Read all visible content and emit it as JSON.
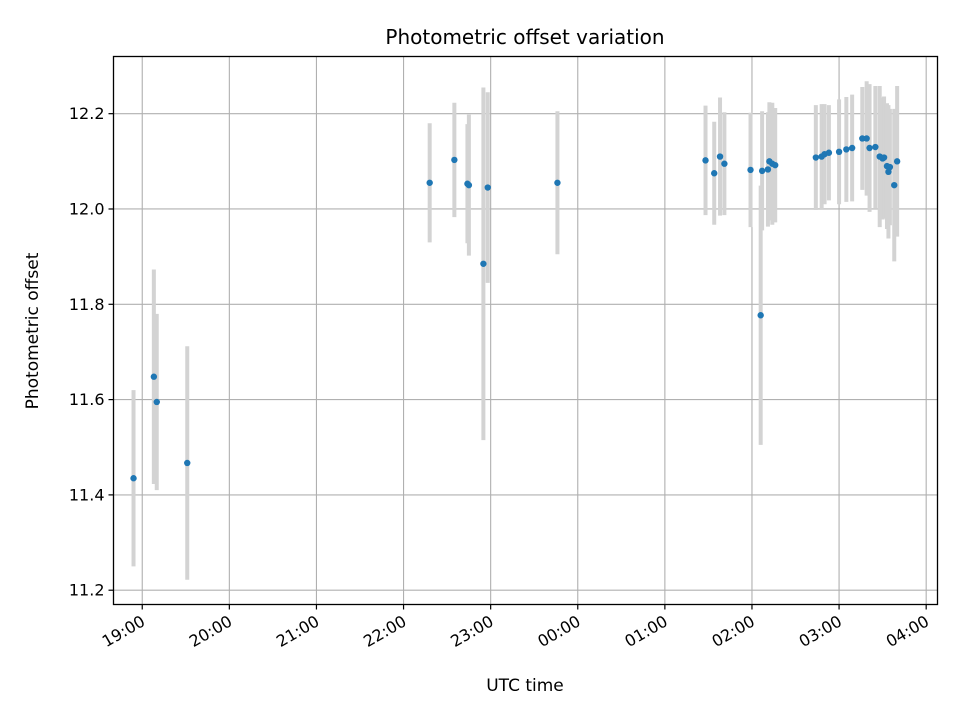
{
  "chart_data": {
    "type": "scatter",
    "title": "Photometric offset variation",
    "xlabel": "UTC time",
    "ylabel": "Photometric offset",
    "x_unit": "hours",
    "xlim": [
      18.67,
      28.13
    ],
    "ylim": [
      11.17,
      12.32
    ],
    "xticks": [
      {
        "value": 19,
        "label": "19:00"
      },
      {
        "value": 20,
        "label": "20:00"
      },
      {
        "value": 21,
        "label": "21:00"
      },
      {
        "value": 22,
        "label": "22:00"
      },
      {
        "value": 23,
        "label": "23:00"
      },
      {
        "value": 24,
        "label": "00:00"
      },
      {
        "value": 25,
        "label": "01:00"
      },
      {
        "value": 26,
        "label": "02:00"
      },
      {
        "value": 27,
        "label": "03:00"
      },
      {
        "value": 28,
        "label": "04:00"
      }
    ],
    "yticks": [
      {
        "value": 11.2,
        "label": "11.2"
      },
      {
        "value": 11.4,
        "label": "11.4"
      },
      {
        "value": 11.6,
        "label": "11.6"
      },
      {
        "value": 11.8,
        "label": "11.8"
      },
      {
        "value": 12.0,
        "label": "12.0"
      },
      {
        "value": 12.2,
        "label": "12.2"
      }
    ],
    "grid": true,
    "colors": {
      "marker": "#1f77b4",
      "errorbar": "#d3d3d3",
      "grid": "#b0b0b0"
    },
    "series": [
      {
        "x": [
          "18:54",
          "19:08",
          "19:10",
          "19:31",
          "22:18",
          "22:35",
          "22:44",
          "22:45",
          "22:55",
          "22:58",
          "23:46",
          "01:28",
          "01:34",
          "01:38",
          "01:41",
          "01:59",
          "02:06",
          "02:07",
          "02:11",
          "02:12",
          "02:14",
          "02:16",
          "02:44",
          "02:48",
          "02:50",
          "02:53",
          "03:00",
          "03:05",
          "03:09",
          "03:16",
          "03:19",
          "03:21",
          "03:25",
          "03:28",
          "03:30",
          "03:31",
          "03:33",
          "03:34",
          "03:35",
          "03:38",
          "03:40"
        ],
        "y": [
          11.435,
          11.648,
          11.595,
          11.467,
          12.055,
          12.103,
          12.053,
          12.05,
          11.885,
          12.045,
          12.055,
          12.102,
          12.075,
          12.11,
          12.095,
          12.082,
          11.777,
          12.08,
          12.083,
          12.1,
          12.095,
          12.092,
          12.108,
          12.11,
          12.115,
          12.118,
          12.12,
          12.125,
          12.128,
          12.148,
          12.148,
          12.128,
          12.13,
          12.11,
          12.106,
          12.108,
          12.09,
          12.078,
          12.088,
          12.05,
          12.1
        ],
        "err": [
          0.185,
          0.225,
          0.185,
          0.245,
          0.125,
          0.12,
          0.125,
          0.148,
          0.37,
          0.2,
          0.15,
          0.115,
          0.108,
          0.124,
          0.108,
          0.12,
          0.272,
          0.125,
          0.12,
          0.124,
          0.128,
          0.12,
          0.11,
          0.11,
          0.105,
          0.1,
          0.11,
          0.11,
          0.112,
          0.108,
          0.12,
          0.134,
          0.128,
          0.148,
          0.128,
          0.128,
          0.132,
          0.14,
          0.122,
          0.16,
          0.158
        ]
      }
    ]
  }
}
